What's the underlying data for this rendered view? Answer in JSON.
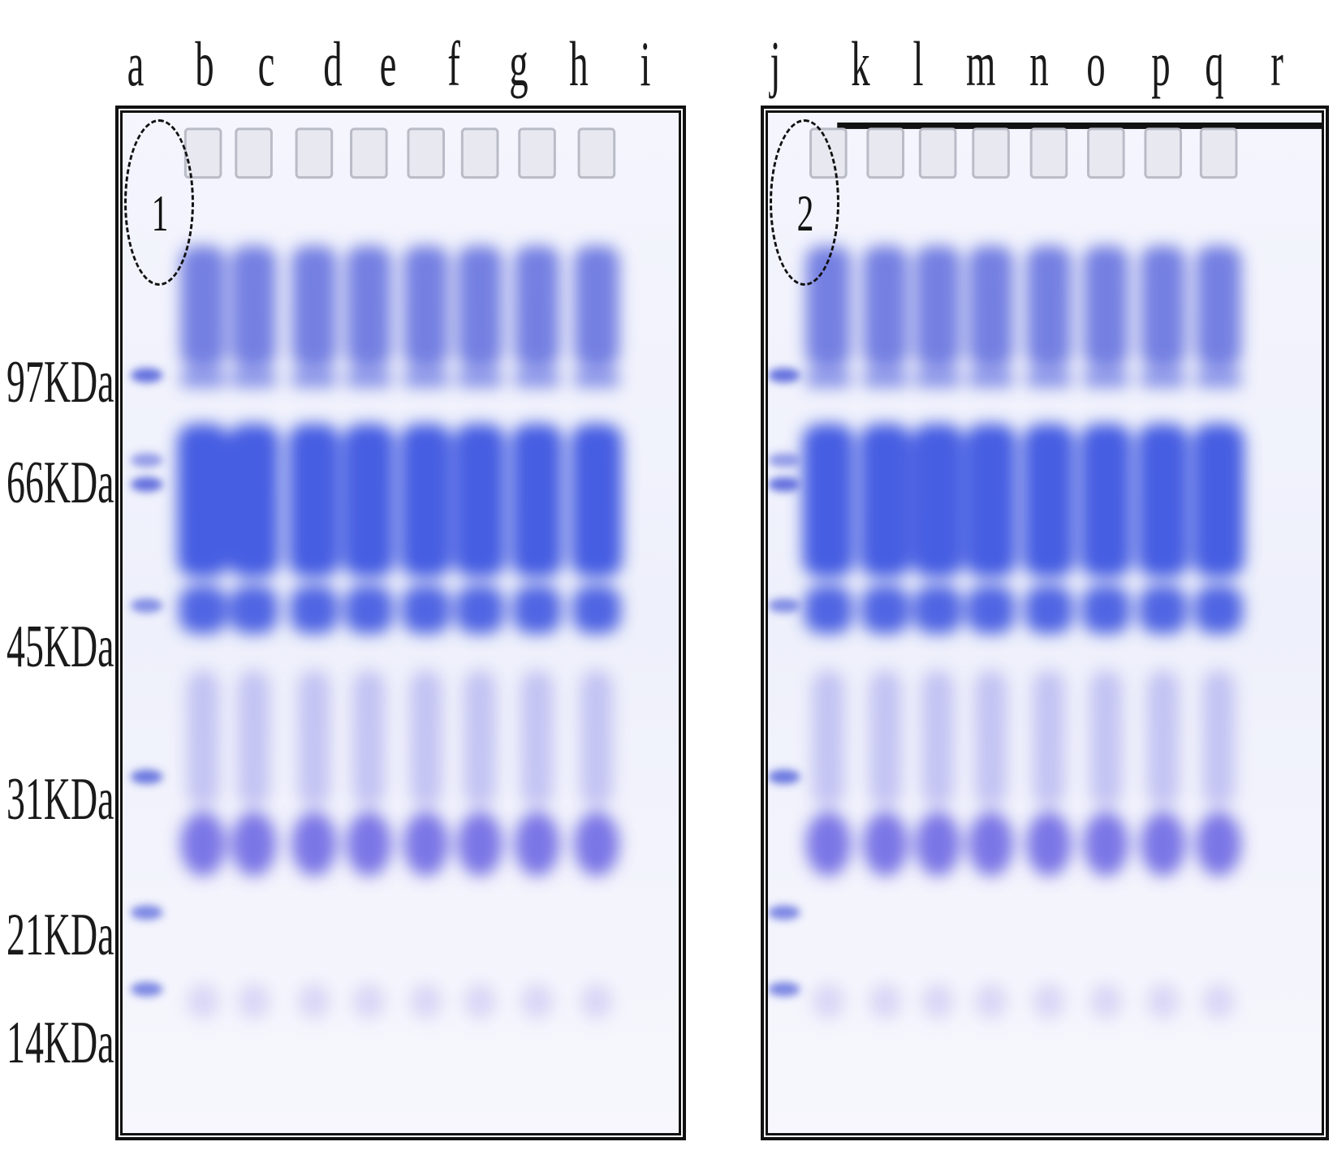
{
  "gel1": {
    "lanes": [
      "a",
      "b",
      "c",
      "d",
      "e",
      "f",
      "g",
      "h",
      "i"
    ],
    "panel_number": "1"
  },
  "gel2": {
    "lanes": [
      "j",
      "k",
      "l",
      "m",
      "n",
      "o",
      "p",
      "q",
      "r"
    ],
    "panel_number": "2"
  },
  "mw_markers": [
    "97KDa",
    "66KDa",
    "45KDa",
    "31KDa",
    "21KDa",
    "14KDa"
  ],
  "colors": {
    "stain": "#3b4fd8",
    "gel_bg": "#eef0fb",
    "frame": "#111111"
  }
}
